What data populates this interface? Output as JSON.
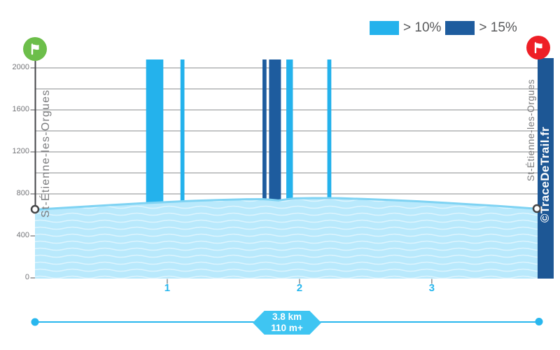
{
  "legend": {
    "items": [
      {
        "label": "> 10%",
        "color": "#24b2ec"
      },
      {
        "label": "> 15%",
        "color": "#1e5c9e"
      }
    ]
  },
  "locations": {
    "start": "St-Étienne-les-Orgues",
    "finish": "St-Étienne-les-Orgues"
  },
  "watermark": {
    "text": "©TraceDeTrail.fr"
  },
  "summary": {
    "distance": "3.8 km",
    "elevation_gain": "110 m+"
  },
  "colors": {
    "accent": "#29b7ee",
    "badge": "#3fc5f2",
    "light_blue": "#24b2ec",
    "dark_blue": "#1e5c9e",
    "watermark_bg": "#1d5795",
    "area_fill": "#b9e9fc",
    "area_edge": "#7fd3f3",
    "gridline": "#898b8e",
    "axis_text": "#737478",
    "side_text": "#7b7c7e",
    "legend_text": "#58595b",
    "marker": "#454648",
    "tick": "#8a8b8d",
    "start_flag": "#6cbe4a",
    "finish_flag": "#ee1f26"
  },
  "chart_data": {
    "type": "area",
    "x_axis": {
      "unit": "km",
      "range_km": [
        0,
        3.8
      ],
      "ticks_km": [
        1,
        2,
        3
      ]
    },
    "y_axis": {
      "unit": "m",
      "range_m": [
        0,
        2080
      ],
      "labeled_ticks_m": [
        0,
        400,
        800,
        1200,
        1600,
        2000
      ],
      "gridlines_m": [
        800,
        1000,
        1200,
        1400,
        1600,
        1800,
        2000
      ]
    },
    "profile": [
      {
        "km": 0.0,
        "m": 650
      },
      {
        "km": 0.2,
        "m": 666
      },
      {
        "km": 0.4,
        "m": 681
      },
      {
        "km": 0.6,
        "m": 696
      },
      {
        "km": 0.8,
        "m": 710
      },
      {
        "km": 1.0,
        "m": 723
      },
      {
        "km": 1.2,
        "m": 734
      },
      {
        "km": 1.4,
        "m": 743
      },
      {
        "km": 1.6,
        "m": 749
      },
      {
        "km": 1.72,
        "m": 750
      },
      {
        "km": 1.78,
        "m": 745
      },
      {
        "km": 1.84,
        "m": 737
      },
      {
        "km": 1.9,
        "m": 748
      },
      {
        "km": 1.97,
        "m": 757
      },
      {
        "km": 2.1,
        "m": 760
      },
      {
        "km": 2.3,
        "m": 759
      },
      {
        "km": 2.5,
        "m": 751
      },
      {
        "km": 2.7,
        "m": 741
      },
      {
        "km": 2.9,
        "m": 729
      },
      {
        "km": 3.1,
        "m": 715
      },
      {
        "km": 3.3,
        "m": 700
      },
      {
        "km": 3.5,
        "m": 685
      },
      {
        "km": 3.65,
        "m": 672
      },
      {
        "km": 3.8,
        "m": 657
      }
    ],
    "steep_sections": [
      {
        "from_km": 0.84,
        "to_km": 0.97,
        "grade": "> 10%"
      },
      {
        "from_km": 1.1,
        "to_km": 1.13,
        "grade": "> 10%"
      },
      {
        "from_km": 1.72,
        "to_km": 1.75,
        "grade": "> 15%"
      },
      {
        "from_km": 1.77,
        "to_km": 1.86,
        "grade": "> 15%"
      },
      {
        "from_km": 1.9,
        "to_km": 1.95,
        "grade": "> 10%"
      },
      {
        "from_km": 2.21,
        "to_km": 2.24,
        "grade": "> 10%"
      }
    ]
  }
}
